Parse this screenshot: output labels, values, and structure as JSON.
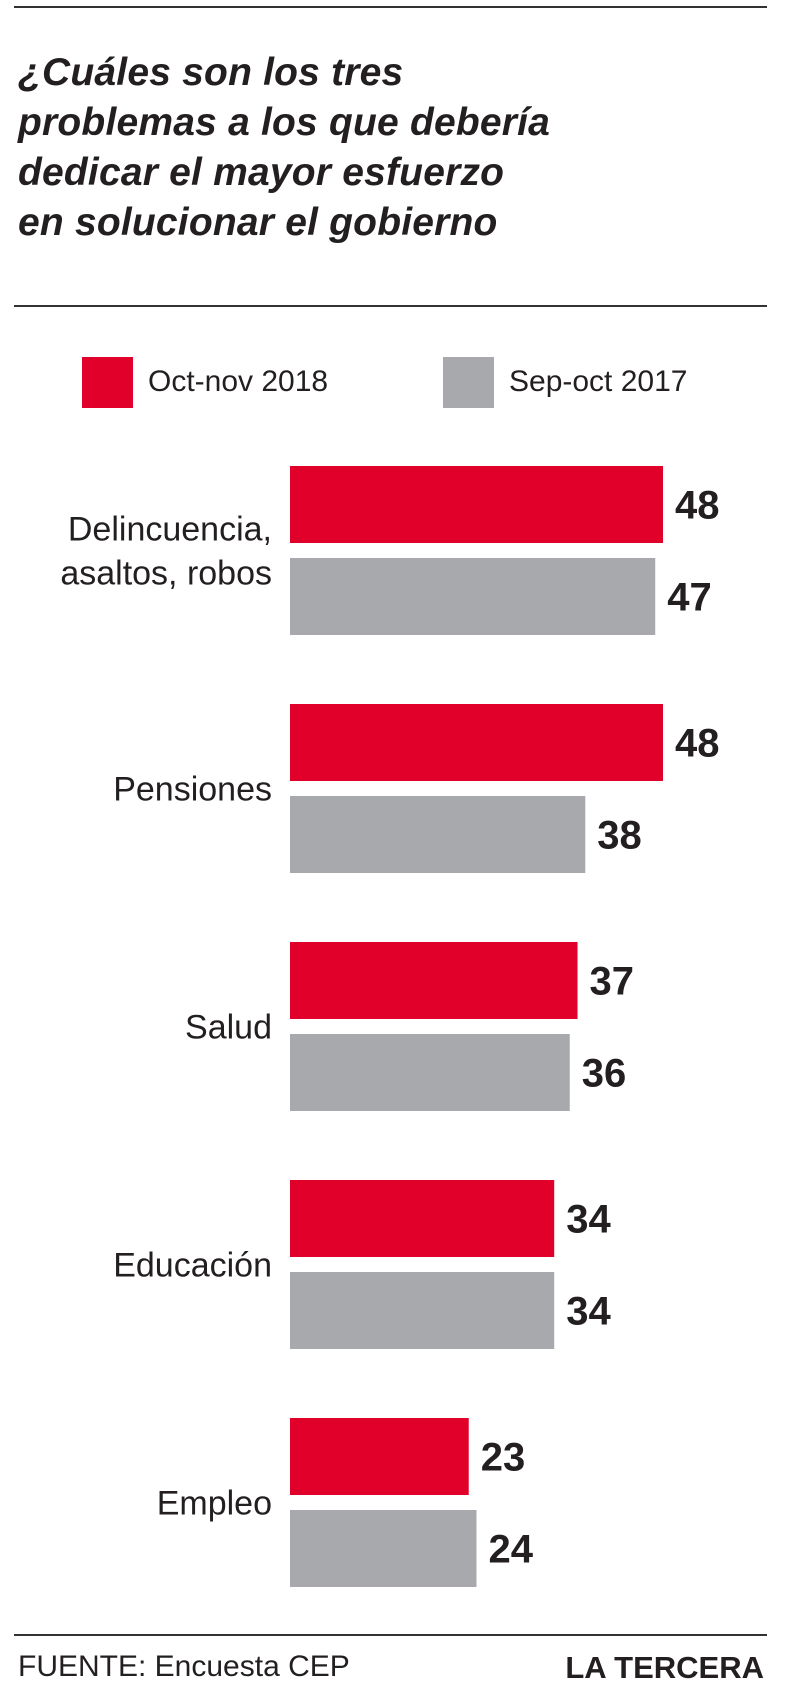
{
  "chart_data": {
    "type": "bar",
    "orientation": "horizontal",
    "title": "¿Cuáles son los tres problemas a los que debería dedicar el mayor esfuerzo en solucionar el gobierno",
    "title_lines": [
      "¿Cuáles son los tres",
      "problemas a los que debería",
      "dedicar el mayor esfuerzo",
      "en solucionar el gobierno"
    ],
    "categories": [
      [
        "Delincuencia,",
        "asaltos, robos"
      ],
      [
        "Pensiones"
      ],
      [
        "Salud"
      ],
      [
        "Educación"
      ],
      [
        "Empleo"
      ]
    ],
    "series": [
      {
        "name": "Oct-nov 2018",
        "color": "#e0002a",
        "values": [
          48,
          48,
          37,
          34,
          23
        ]
      },
      {
        "name": "Sep-oct 2017",
        "color": "#a7a9ac",
        "values": [
          47,
          38,
          36,
          34,
          24
        ]
      }
    ],
    "xlim": [
      0,
      48
    ],
    "grid": false,
    "legend_position": "top"
  },
  "footer": {
    "source": "FUENTE: Encuesta CEP",
    "brand": "LA TERCERA"
  }
}
